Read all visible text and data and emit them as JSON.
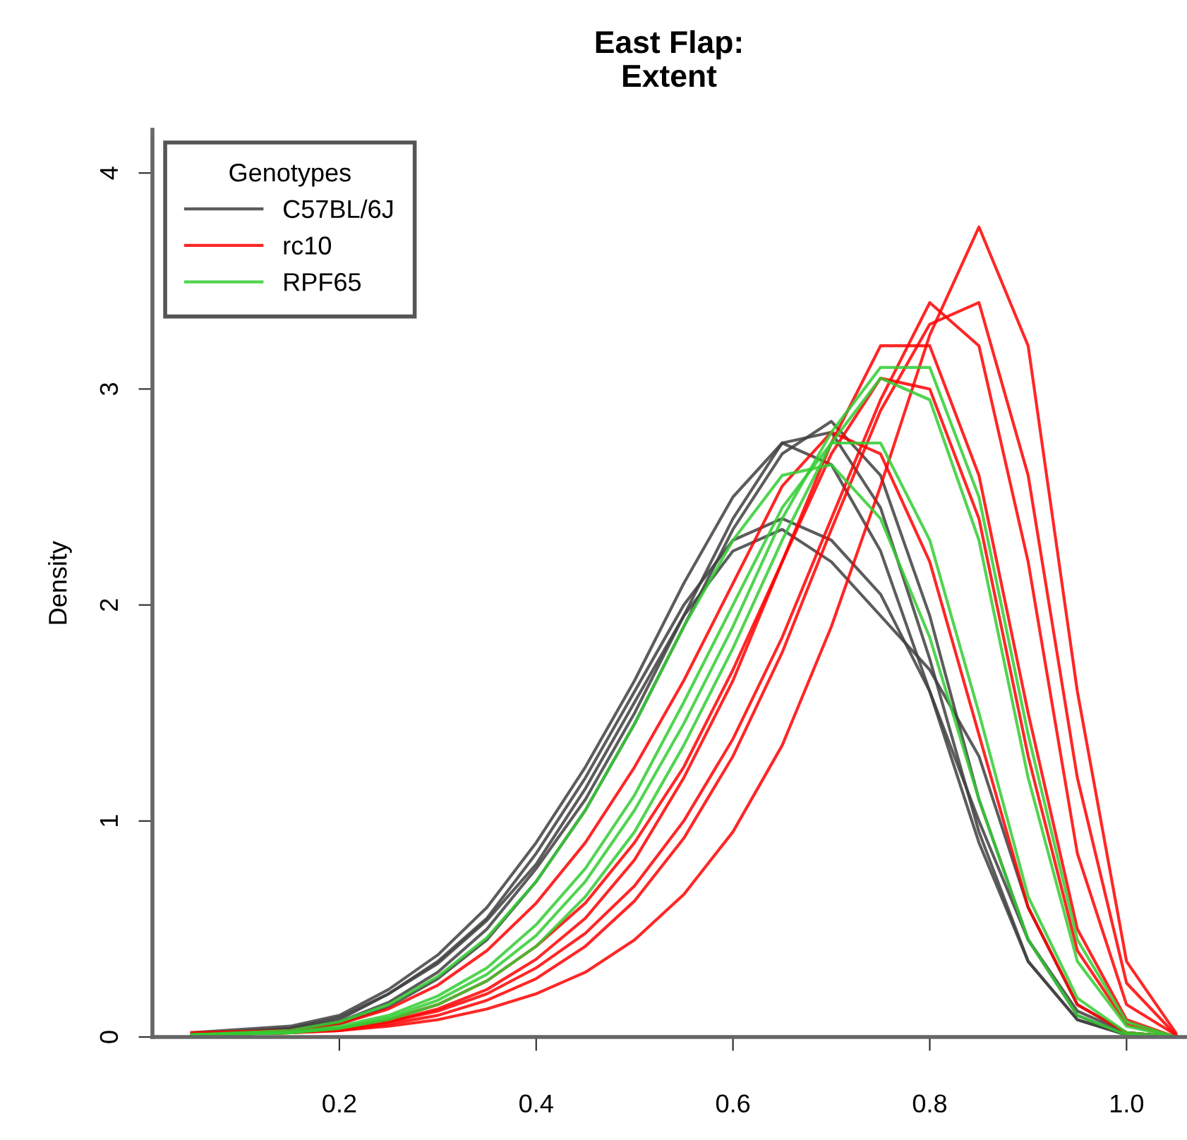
{
  "chart_data": {
    "type": "line",
    "title": "East Flap:\nExtent",
    "ylabel": "Density",
    "legend_title": "Genotypes",
    "x": [
      0.05,
      0.15,
      0.2,
      0.25,
      0.3,
      0.35,
      0.4,
      0.45,
      0.5,
      0.55,
      0.6,
      0.65,
      0.7,
      0.75,
      0.8,
      0.85,
      0.9,
      0.95,
      1.0,
      1.05
    ],
    "series": [
      {
        "name": "C57BL/6J",
        "color": "#404040",
        "values": [
          0.02,
          0.05,
          0.1,
          0.22,
          0.38,
          0.6,
          0.9,
          1.25,
          1.65,
          2.1,
          2.5,
          2.75,
          2.65,
          2.25,
          1.6,
          0.9,
          0.35,
          0.08,
          0.01,
          0
        ]
      },
      {
        "color": "#404040",
        "values": [
          0.01,
          0.04,
          0.08,
          0.2,
          0.35,
          0.55,
          0.85,
          1.2,
          1.6,
          2.0,
          2.3,
          2.4,
          2.3,
          2.05,
          1.6,
          1.0,
          0.45,
          0.12,
          0.02,
          0
        ]
      },
      {
        "color": "#404040",
        "values": [
          0.01,
          0.03,
          0.07,
          0.16,
          0.3,
          0.5,
          0.78,
          1.1,
          1.5,
          1.95,
          2.4,
          2.75,
          2.8,
          2.45,
          1.75,
          0.95,
          0.35,
          0.08,
          0.01,
          0
        ]
      },
      {
        "color": "#404040",
        "values": [
          0.01,
          0.04,
          0.09,
          0.2,
          0.34,
          0.54,
          0.8,
          1.15,
          1.55,
          1.95,
          2.25,
          2.35,
          2.2,
          1.95,
          1.7,
          1.3,
          0.6,
          0.15,
          0.02,
          0
        ]
      },
      {
        "color": "#404040",
        "values": [
          0.01,
          0.03,
          0.06,
          0.14,
          0.27,
          0.45,
          0.72,
          1.05,
          1.45,
          1.9,
          2.35,
          2.7,
          2.85,
          2.6,
          1.95,
          1.1,
          0.45,
          0.1,
          0.01,
          0
        ]
      },
      {
        "name": "rc10",
        "color": "#ff0000",
        "values": [
          0.01,
          0.03,
          0.06,
          0.13,
          0.24,
          0.4,
          0.62,
          0.9,
          1.25,
          1.65,
          2.1,
          2.55,
          2.8,
          2.7,
          2.2,
          1.4,
          0.6,
          0.15,
          0.02,
          0
        ]
      },
      {
        "color": "#ff0000",
        "values": [
          0.01,
          0.02,
          0.04,
          0.08,
          0.15,
          0.26,
          0.42,
          0.62,
          0.9,
          1.25,
          1.7,
          2.2,
          2.7,
          3.05,
          3.0,
          2.4,
          1.3,
          0.4,
          0.06,
          0
        ]
      },
      {
        "color": "#ff0000",
        "values": [
          0.02,
          0.03,
          0.04,
          0.07,
          0.12,
          0.2,
          0.32,
          0.48,
          0.7,
          1.0,
          1.38,
          1.85,
          2.4,
          2.95,
          3.4,
          3.2,
          2.2,
          0.85,
          0.15,
          0.01
        ]
      },
      {
        "color": "#ff0000",
        "values": [
          0.01,
          0.02,
          0.03,
          0.05,
          0.08,
          0.13,
          0.2,
          0.3,
          0.45,
          0.66,
          0.95,
          1.35,
          1.9,
          2.55,
          3.25,
          3.75,
          3.2,
          1.6,
          0.35,
          0.02
        ]
      },
      {
        "color": "#ff0000",
        "values": [
          0.01,
          0.02,
          0.04,
          0.07,
          0.13,
          0.22,
          0.36,
          0.55,
          0.82,
          1.2,
          1.65,
          2.2,
          2.75,
          3.2,
          3.2,
          2.6,
          1.5,
          0.5,
          0.08,
          0
        ]
      },
      {
        "color": "#ff0000",
        "values": [
          0.01,
          0.02,
          0.03,
          0.06,
          0.1,
          0.17,
          0.27,
          0.42,
          0.63,
          0.92,
          1.3,
          1.78,
          2.35,
          2.9,
          3.3,
          3.4,
          2.6,
          1.2,
          0.25,
          0.01
        ]
      },
      {
        "name": "RPF65",
        "color": "#33cc33",
        "values": [
          0.01,
          0.03,
          0.07,
          0.15,
          0.28,
          0.46,
          0.72,
          1.05,
          1.45,
          1.9,
          2.3,
          2.6,
          2.65,
          2.4,
          1.85,
          1.1,
          0.45,
          0.1,
          0.01,
          0
        ]
      },
      {
        "color": "#33cc33",
        "values": [
          0.01,
          0.02,
          0.05,
          0.1,
          0.19,
          0.32,
          0.52,
          0.78,
          1.12,
          1.55,
          2.0,
          2.45,
          2.75,
          2.75,
          2.3,
          1.5,
          0.65,
          0.18,
          0.02,
          0
        ]
      },
      {
        "color": "#33cc33",
        "values": [
          0.01,
          0.02,
          0.04,
          0.08,
          0.15,
          0.26,
          0.42,
          0.65,
          0.95,
          1.35,
          1.8,
          2.3,
          2.75,
          3.05,
          2.95,
          2.3,
          1.2,
          0.35,
          0.05,
          0
        ]
      },
      {
        "color": "#33cc33",
        "values": [
          0.01,
          0.02,
          0.04,
          0.09,
          0.17,
          0.29,
          0.47,
          0.72,
          1.05,
          1.45,
          1.9,
          2.4,
          2.8,
          3.1,
          3.1,
          2.5,
          1.4,
          0.45,
          0.07,
          0
        ]
      }
    ],
    "xlim": [
      0.01,
      1.06
    ],
    "ylim": [
      0,
      4.2
    ],
    "xticks": [
      0.2,
      0.4,
      0.6,
      0.8,
      {
        "value": 1.0,
        "label": "1.0"
      }
    ],
    "yticks": [
      0,
      1,
      2,
      3,
      4
    ],
    "legend": "top left",
    "grid": false,
    "line_style": "solid",
    "marker": "none"
  }
}
